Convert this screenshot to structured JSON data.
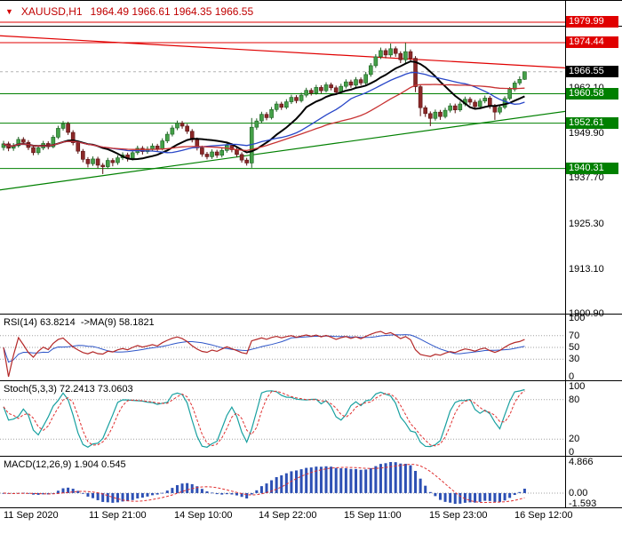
{
  "header": {
    "marker": "▼",
    "symbol": "XAUUSD,H1",
    "ohlc": "1964.49 1966.61 1964.35 1966.55"
  },
  "price_axis": {
    "labels": [
      {
        "text": "1979.99",
        "price": 1979.99,
        "color": "#e00000"
      },
      {
        "text": "1974.44",
        "price": 1974.44,
        "color": "#e00000"
      },
      {
        "text": "1966.55",
        "price": 1966.55,
        "color": "#000000"
      },
      {
        "text": "1960.58",
        "price": 1960.58,
        "color": "#008000"
      },
      {
        "text": "1952.61",
        "price": 1952.61,
        "color": "#008000"
      },
      {
        "text": "1940.31",
        "price": 1940.31,
        "color": "#008000"
      }
    ],
    "ticks": [
      {
        "text": "1962.10",
        "price": 1962.1
      },
      {
        "text": "1949.90",
        "price": 1949.9
      },
      {
        "text": "1937.70",
        "price": 1937.7
      },
      {
        "text": "1925.30",
        "price": 1925.3
      },
      {
        "text": "1913.10",
        "price": 1913.1
      },
      {
        "text": "1900.90",
        "price": 1900.9
      }
    ]
  },
  "time_axis": [
    "11 Sep 2020",
    "11 Sep 21:00",
    "14 Sep 10:00",
    "14 Sep 22:00",
    "15 Sep 11:00",
    "15 Sep 23:00",
    "16 Sep 12:00"
  ],
  "chart_data": {
    "type": "candlestick",
    "symbol": "XAUUSD",
    "timeframe": "H1",
    "last": {
      "open": 1964.49,
      "high": 1966.61,
      "low": 1964.35,
      "close": 1966.55
    },
    "colors": {
      "up": "#44a048",
      "up_border": "#1b5e20",
      "down": "#8b2828",
      "down_border": "#591111",
      "ma_black": "#000000",
      "ma_blue": "#2846c8",
      "ma_red": "#c83232",
      "hline_red": "#e00000",
      "hline_green": "#008000",
      "bid": "#b4b4b4",
      "grid": "#a0a0a0",
      "rsi": "#b42828",
      "rsi_ma": "#2d55c8",
      "stoch_k": "#18a0a0",
      "stoch_d": "#e03030",
      "macd_hist": "#2d50b4",
      "macd_signal": "#e03030"
    },
    "candles": [
      [
        1946.0,
        1947.8,
        1945.2,
        1947.0
      ],
      [
        1947.0,
        1947.6,
        1945.0,
        1945.8
      ],
      [
        1945.8,
        1947.2,
        1945.1,
        1946.5
      ],
      [
        1946.5,
        1948.9,
        1946.0,
        1948.2
      ],
      [
        1948.2,
        1948.8,
        1946.8,
        1947.4
      ],
      [
        1947.4,
        1948.0,
        1945.3,
        1946.0
      ],
      [
        1946.0,
        1946.6,
        1943.9,
        1944.6
      ],
      [
        1944.6,
        1946.5,
        1944.0,
        1945.9
      ],
      [
        1945.9,
        1947.8,
        1945.3,
        1947.1
      ],
      [
        1947.1,
        1947.7,
        1945.5,
        1946.2
      ],
      [
        1946.2,
        1949.4,
        1945.8,
        1948.8
      ],
      [
        1948.8,
        1951.9,
        1948.3,
        1951.2
      ],
      [
        1951.2,
        1953.2,
        1950.6,
        1952.4
      ],
      [
        1952.4,
        1953.0,
        1949.4,
        1950.1
      ],
      [
        1950.1,
        1950.7,
        1946.6,
        1947.3
      ],
      [
        1947.3,
        1947.9,
        1944.3,
        1945.0
      ],
      [
        1945.0,
        1945.6,
        1942.0,
        1942.8
      ],
      [
        1942.8,
        1943.4,
        1940.6,
        1941.6
      ],
      [
        1941.6,
        1943.6,
        1941.0,
        1942.9
      ],
      [
        1942.9,
        1943.5,
        1940.4,
        1941.2
      ],
      [
        1941.2,
        1941.8,
        1938.8,
        1940.8
      ],
      [
        1940.8,
        1943.2,
        1940.2,
        1942.5
      ],
      [
        1942.5,
        1943.1,
        1940.9,
        1941.9
      ],
      [
        1941.9,
        1943.9,
        1941.3,
        1943.2
      ],
      [
        1943.2,
        1944.7,
        1942.6,
        1944.0
      ],
      [
        1944.0,
        1944.6,
        1942.2,
        1943.1
      ],
      [
        1943.1,
        1945.3,
        1942.5,
        1944.6
      ],
      [
        1944.6,
        1946.5,
        1944.0,
        1945.8
      ],
      [
        1945.8,
        1946.4,
        1944.1,
        1944.9
      ],
      [
        1944.9,
        1946.3,
        1944.3,
        1945.6
      ],
      [
        1945.6,
        1947.1,
        1945.0,
        1946.4
      ],
      [
        1946.4,
        1947.0,
        1944.9,
        1945.7
      ],
      [
        1945.7,
        1948.5,
        1945.2,
        1947.8
      ],
      [
        1947.8,
        1950.3,
        1947.2,
        1949.6
      ],
      [
        1949.6,
        1952.0,
        1949.0,
        1951.3
      ],
      [
        1951.3,
        1953.3,
        1950.7,
        1952.6
      ],
      [
        1952.6,
        1953.2,
        1951.1,
        1951.8
      ],
      [
        1951.8,
        1952.4,
        1949.7,
        1950.4
      ],
      [
        1950.4,
        1951.0,
        1947.4,
        1948.1
      ],
      [
        1948.1,
        1948.7,
        1945.2,
        1945.9
      ],
      [
        1945.9,
        1946.5,
        1943.5,
        1944.2
      ],
      [
        1944.2,
        1944.8,
        1942.8,
        1943.5
      ],
      [
        1943.5,
        1945.5,
        1942.9,
        1944.8
      ],
      [
        1944.8,
        1945.4,
        1943.2,
        1943.9
      ],
      [
        1943.9,
        1945.9,
        1943.3,
        1945.2
      ],
      [
        1945.2,
        1947.3,
        1944.6,
        1946.6
      ],
      [
        1946.6,
        1947.2,
        1944.7,
        1945.4
      ],
      [
        1945.4,
        1946.0,
        1943.4,
        1944.1
      ],
      [
        1944.1,
        1944.7,
        1941.9,
        1942.6
      ],
      [
        1942.6,
        1943.2,
        1941.1,
        1941.8
      ],
      [
        1941.8,
        1954.0,
        1940.5,
        1951.5
      ],
      [
        1951.5,
        1953.9,
        1950.8,
        1953.2
      ],
      [
        1953.2,
        1955.7,
        1952.6,
        1955.0
      ],
      [
        1955.0,
        1955.6,
        1953.4,
        1954.1
      ],
      [
        1954.1,
        1957.0,
        1953.6,
        1956.3
      ],
      [
        1956.3,
        1958.5,
        1955.7,
        1957.8
      ],
      [
        1957.8,
        1958.4,
        1956.2,
        1956.9
      ],
      [
        1956.9,
        1959.1,
        1956.4,
        1958.4
      ],
      [
        1958.4,
        1960.3,
        1957.8,
        1959.6
      ],
      [
        1959.6,
        1960.2,
        1958.0,
        1958.7
      ],
      [
        1958.7,
        1960.9,
        1958.2,
        1960.2
      ],
      [
        1960.2,
        1962.2,
        1959.6,
        1961.5
      ],
      [
        1961.5,
        1962.1,
        1960.1,
        1960.8
      ],
      [
        1960.8,
        1963.0,
        1960.3,
        1962.3
      ],
      [
        1962.3,
        1962.9,
        1960.7,
        1961.4
      ],
      [
        1961.4,
        1963.7,
        1960.9,
        1963.0
      ],
      [
        1963.0,
        1963.6,
        1961.5,
        1962.2
      ],
      [
        1962.2,
        1962.8,
        1960.3,
        1961.0
      ],
      [
        1961.0,
        1963.3,
        1960.5,
        1962.6
      ],
      [
        1962.6,
        1964.5,
        1962.0,
        1963.8
      ],
      [
        1963.8,
        1964.4,
        1962.2,
        1962.9
      ],
      [
        1962.9,
        1965.1,
        1962.4,
        1964.4
      ],
      [
        1964.4,
        1965.0,
        1962.8,
        1963.5
      ],
      [
        1963.5,
        1966.5,
        1963.0,
        1965.8
      ],
      [
        1965.8,
        1968.9,
        1965.2,
        1968.2
      ],
      [
        1968.2,
        1971.3,
        1967.6,
        1970.6
      ],
      [
        1970.6,
        1973.1,
        1970.0,
        1972.3
      ],
      [
        1972.3,
        1972.9,
        1970.2,
        1971.1
      ],
      [
        1971.1,
        1974.2,
        1970.5,
        1972.8
      ],
      [
        1972.8,
        1973.4,
        1970.6,
        1971.5
      ],
      [
        1971.5,
        1972.1,
        1968.9,
        1969.8
      ],
      [
        1969.8,
        1974.4,
        1968.9,
        1972.0
      ],
      [
        1972.0,
        1972.6,
        1969.3,
        1970.2
      ],
      [
        1970.2,
        1970.8,
        1961.0,
        1962.5
      ],
      [
        1962.5,
        1963.1,
        1954.5,
        1956.8
      ],
      [
        1956.8,
        1957.4,
        1954.3,
        1955.2
      ],
      [
        1955.2,
        1955.8,
        1951.8,
        1953.9
      ],
      [
        1953.9,
        1956.3,
        1953.3,
        1955.6
      ],
      [
        1955.6,
        1956.2,
        1953.5,
        1954.4
      ],
      [
        1954.4,
        1956.8,
        1953.9,
        1956.1
      ],
      [
        1956.1,
        1958.0,
        1955.5,
        1957.3
      ],
      [
        1957.3,
        1957.9,
        1955.3,
        1956.2
      ],
      [
        1956.2,
        1958.5,
        1955.7,
        1957.8
      ],
      [
        1957.8,
        1959.8,
        1957.2,
        1959.1
      ],
      [
        1959.1,
        1959.7,
        1957.5,
        1958.3
      ],
      [
        1958.3,
        1958.9,
        1956.3,
        1957.1
      ],
      [
        1957.1,
        1959.3,
        1956.6,
        1958.6
      ],
      [
        1958.6,
        1960.1,
        1958.0,
        1959.4
      ],
      [
        1959.4,
        1960.0,
        1956.5,
        1957.2
      ],
      [
        1957.2,
        1957.8,
        1953.5,
        1955.6
      ],
      [
        1955.6,
        1957.6,
        1955.0,
        1956.9
      ],
      [
        1956.9,
        1959.9,
        1956.4,
        1959.3
      ],
      [
        1959.3,
        1962.4,
        1958.8,
        1961.8
      ],
      [
        1961.8,
        1964.1,
        1961.2,
        1963.5
      ],
      [
        1963.5,
        1965.3,
        1962.9,
        1964.49
      ],
      [
        1964.49,
        1966.61,
        1964.35,
        1966.55
      ]
    ],
    "overlays": {
      "h_lines": [
        {
          "price": 1979.99,
          "color": "#e00000"
        },
        {
          "price": 1974.44,
          "color": "#e00000"
        },
        {
          "price": 1960.58,
          "color": "#008000"
        },
        {
          "price": 1952.61,
          "color": "#008000"
        },
        {
          "price": 1940.31,
          "color": "#008000"
        }
      ],
      "trend_lines": [
        {
          "p1": 1976.3,
          "p2": 1967.6,
          "color": "#e00000"
        },
        {
          "p1": 1934.5,
          "p2": 1955.8,
          "color": "#008000"
        }
      ],
      "moving_averages": [
        {
          "period": 12,
          "color": "#000000",
          "width": 2
        },
        {
          "period": 21,
          "color": "#2846c8",
          "width": 1.3
        },
        {
          "period": 34,
          "color": "#c83232",
          "width": 1.3
        }
      ],
      "bid_line": 1966.55
    },
    "indicators": {
      "rsi": {
        "label": "RSI(14) 63.8214  ->MA(9) 58.1821",
        "period": 14,
        "ma_period": 9,
        "value": 63.8214,
        "ma_value": 58.1821,
        "levels": [
          70,
          50,
          30
        ],
        "axis": [
          "100",
          "70",
          "50",
          "30",
          "0"
        ],
        "range": [
          0,
          100
        ]
      },
      "stoch": {
        "label": "Stoch(5,3,3) 72.2413 73.0603",
        "k_period": 5,
        "slowing": 3,
        "d_period": 3,
        "value_k": 72.2413,
        "value_d": 73.0603,
        "levels": [
          80,
          20
        ],
        "axis": [
          "100",
          "80",
          "20",
          "0"
        ],
        "range": [
          0,
          100
        ]
      },
      "macd": {
        "label": "MACD(12,26,9) 1.904 0.545",
        "fast": 12,
        "slow": 26,
        "signal": 9,
        "value_macd": 1.904,
        "value_signal": 0.545,
        "axis": [
          "4.866",
          "0.00",
          "-1.593"
        ],
        "range": [
          -1.593,
          4.866
        ]
      }
    }
  }
}
